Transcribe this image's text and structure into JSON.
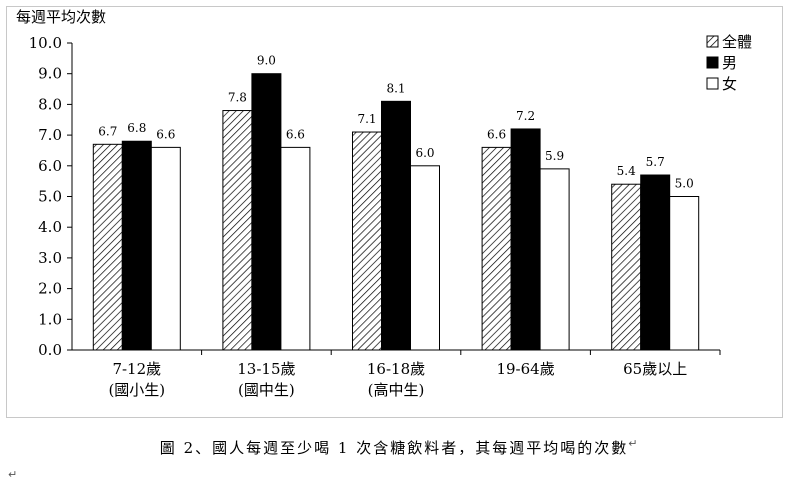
{
  "chart_data": {
    "type": "bar",
    "ylabel": "每週平均次數",
    "ylim": [
      0,
      10
    ],
    "yticks": [
      "0.0",
      "1.0",
      "2.0",
      "3.0",
      "4.0",
      "5.0",
      "6.0",
      "7.0",
      "8.0",
      "9.0",
      "10.0"
    ],
    "categories": [
      [
        "7-12歲",
        "(國小生)"
      ],
      [
        "13-15歲",
        "(國中生)"
      ],
      [
        "16-18歲",
        "(高中生)"
      ],
      [
        "19-64歲"
      ],
      [
        "65歲以上"
      ]
    ],
    "series": [
      {
        "name": "全體",
        "values": [
          6.7,
          7.8,
          7.1,
          6.6,
          5.4
        ],
        "labels": [
          "6.7",
          "7.8",
          "7.1",
          "6.6",
          "5.4"
        ],
        "fill": "hatch"
      },
      {
        "name": "男",
        "values": [
          6.8,
          9.0,
          8.1,
          7.2,
          5.7
        ],
        "labels": [
          "6.8",
          "9.0",
          "8.1",
          "7.2",
          "5.7"
        ],
        "fill": "#000000"
      },
      {
        "name": "女",
        "values": [
          6.6,
          6.6,
          6.0,
          5.9,
          5.0
        ],
        "labels": [
          "6.6",
          "6.6",
          "6.0",
          "5.9",
          "5.0"
        ],
        "fill": "#ffffff"
      }
    ],
    "legend": "top-right"
  },
  "caption": "圖 2、國人每週至少喝 1 次含糖飲料者，其每週平均喝的次數",
  "marks": {
    "tail1": "↵",
    "tail2": "↵"
  }
}
